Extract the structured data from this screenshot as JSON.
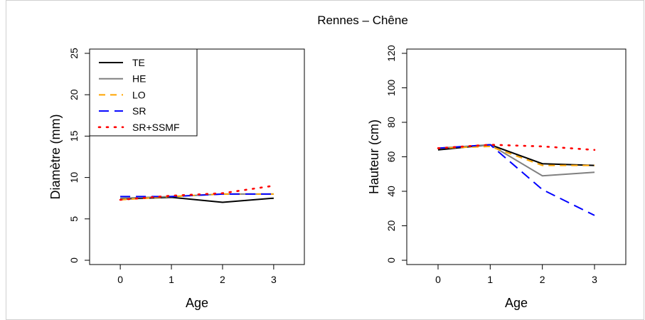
{
  "title": "Rennes – Chêne",
  "colors": {
    "TE": "#000000",
    "HE": "#808080",
    "LO": "#FFA500",
    "SR": "#0000FF",
    "SR+SSMF": "#FF0000"
  },
  "chart_data": [
    {
      "type": "line",
      "title": "",
      "xlabel": "Age",
      "ylabel": "Diamètre (mm)",
      "xlim": [
        -0.6,
        3.6
      ],
      "ylim": [
        0,
        25
      ],
      "xticks": [
        0,
        1,
        2,
        3
      ],
      "yticks": [
        0,
        5,
        10,
        15,
        20,
        25
      ],
      "x": [
        0,
        1,
        2,
        3
      ],
      "legend_position": "top-left",
      "series": [
        {
          "name": "TE",
          "values": [
            7.4,
            7.6,
            7.0,
            7.5
          ],
          "dash": "solid",
          "color": "#000000"
        },
        {
          "name": "HE",
          "values": [
            7.5,
            7.7,
            8.0,
            8.0
          ],
          "dash": "solid",
          "color": "#808080"
        },
        {
          "name": "LO",
          "values": [
            7.3,
            7.7,
            8.0,
            8.0
          ],
          "dash": "dashed",
          "color": "#FFA500"
        },
        {
          "name": "SR",
          "values": [
            7.7,
            7.7,
            8.0,
            8.0
          ],
          "dash": "longdash",
          "color": "#0000FF"
        },
        {
          "name": "SR+SSMF",
          "values": [
            7.3,
            7.8,
            8.1,
            9.0
          ],
          "dash": "dotted",
          "color": "#FF0000"
        }
      ]
    },
    {
      "type": "line",
      "title": "",
      "xlabel": "Age",
      "ylabel": "Hauteur (cm)",
      "xlim": [
        -0.6,
        3.6
      ],
      "ylim": [
        0,
        120
      ],
      "xticks": [
        0,
        1,
        2,
        3
      ],
      "yticks": [
        0,
        20,
        40,
        60,
        80,
        100,
        120
      ],
      "x": [
        0,
        1,
        2,
        3
      ],
      "series": [
        {
          "name": "TE",
          "values": [
            64,
            67,
            56,
            55
          ],
          "dash": "solid",
          "color": "#000000"
        },
        {
          "name": "HE",
          "values": [
            65,
            67,
            49,
            51
          ],
          "dash": "solid",
          "color": "#808080"
        },
        {
          "name": "LO",
          "values": [
            65,
            66,
            55,
            55
          ],
          "dash": "dashed",
          "color": "#FFA500"
        },
        {
          "name": "SR",
          "values": [
            65,
            67,
            41,
            26
          ],
          "dash": "longdash",
          "color": "#0000FF"
        },
        {
          "name": "SR+SSMF",
          "values": [
            65,
            67,
            66,
            64
          ],
          "dash": "dotted",
          "color": "#FF0000"
        }
      ]
    }
  ]
}
